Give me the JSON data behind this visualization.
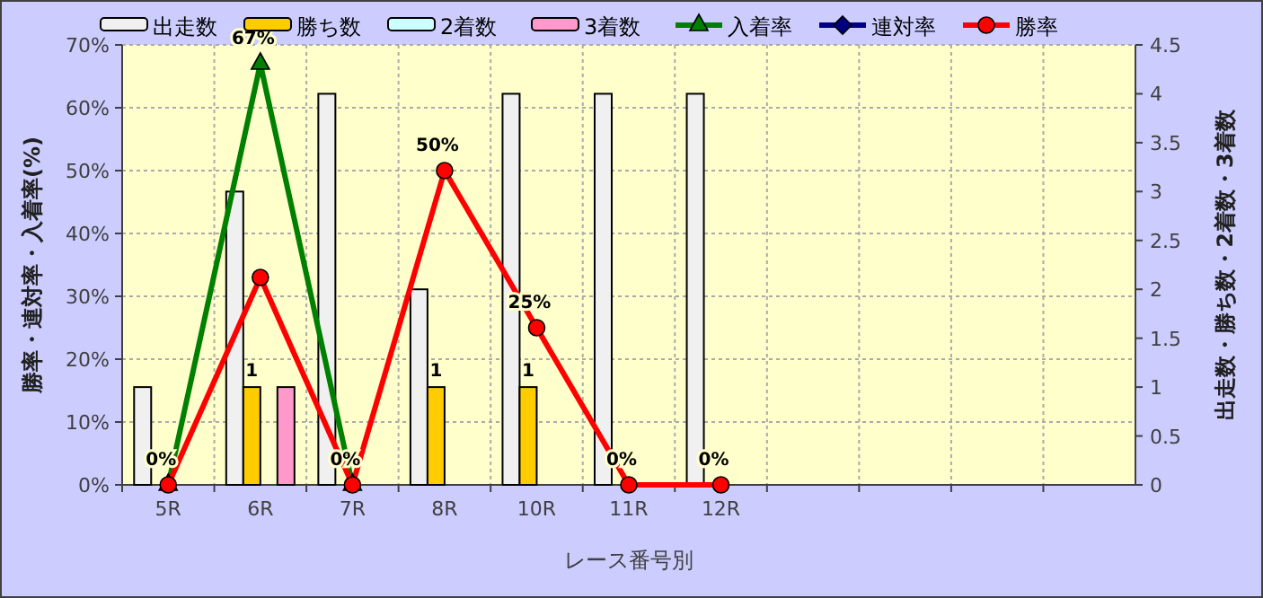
{
  "chart_data": {
    "type": "bar",
    "xlabel": "レース番号別",
    "ylabel": "勝率・連対率・入着率(%)",
    "y2label": "出走数・勝ち数・2着数・3着数",
    "categories": [
      "5R",
      "6R",
      "7R",
      "8R",
      "10R",
      "11R",
      "12R",
      null,
      null,
      null,
      null
    ],
    "ylim": [
      0,
      70
    ],
    "yticks": [
      {
        "value": 0,
        "label": "0%"
      },
      {
        "value": 10,
        "label": "10%"
      },
      {
        "value": 20,
        "label": "20%"
      },
      {
        "value": 30,
        "label": "30%"
      },
      {
        "value": 40,
        "label": "40%"
      },
      {
        "value": 50,
        "label": "50%"
      },
      {
        "value": 60,
        "label": "60%"
      },
      {
        "value": 70,
        "label": "70%"
      }
    ],
    "y2lim": [
      0,
      4.5
    ],
    "y2ticks": [
      0,
      0.5,
      1,
      1.5,
      2,
      2.5,
      3,
      3.5,
      4,
      4.5
    ],
    "grid": true,
    "legend": "top",
    "series": [
      {
        "name": "出走数",
        "type": "bar",
        "axis": "y2",
        "color": "#f0f0f0",
        "values": [
          1,
          3,
          4,
          2,
          4,
          4,
          4,
          null,
          null,
          null,
          null
        ]
      },
      {
        "name": "勝ち数",
        "type": "bar",
        "axis": "y2",
        "color": "#ffcc00",
        "values": [
          0,
          1,
          0,
          1,
          1,
          0,
          0,
          null,
          null,
          null,
          null
        ],
        "value_labels": [
          null,
          "1",
          null,
          "1",
          "1",
          null,
          null,
          null,
          null,
          null,
          null
        ]
      },
      {
        "name": "2着数",
        "type": "bar",
        "axis": "y2",
        "color": "#ccffff",
        "values": [
          0,
          0,
          0,
          0,
          0,
          0,
          0,
          null,
          null,
          null,
          null
        ]
      },
      {
        "name": "3着数",
        "type": "bar",
        "axis": "y2",
        "color": "#ff99cc",
        "values": [
          0,
          1,
          0,
          0,
          0,
          0,
          0,
          null,
          null,
          null,
          null
        ]
      },
      {
        "name": "入着率",
        "type": "line",
        "color": "#008000",
        "marker": "triangle",
        "values": [
          0,
          67,
          0,
          null,
          null,
          null,
          null,
          null,
          null,
          null,
          null
        ],
        "value_labels": [
          "0%",
          "67%",
          "0%",
          null,
          null,
          null,
          null,
          null,
          null,
          null,
          null
        ]
      },
      {
        "name": "連対率",
        "type": "line",
        "color": "#000080",
        "marker": "diamond",
        "values": [
          null,
          null,
          null,
          null,
          null,
          null,
          null,
          null,
          null,
          null,
          null
        ]
      },
      {
        "name": "勝率",
        "type": "line",
        "color": "#ff0000",
        "marker": "circle",
        "values": [
          0,
          33,
          0,
          50,
          25,
          0,
          0,
          null,
          null,
          null,
          null
        ],
        "value_labels": [
          null,
          null,
          null,
          "50%",
          "25%",
          "0%",
          "0%",
          null,
          null,
          null,
          null
        ]
      }
    ]
  }
}
